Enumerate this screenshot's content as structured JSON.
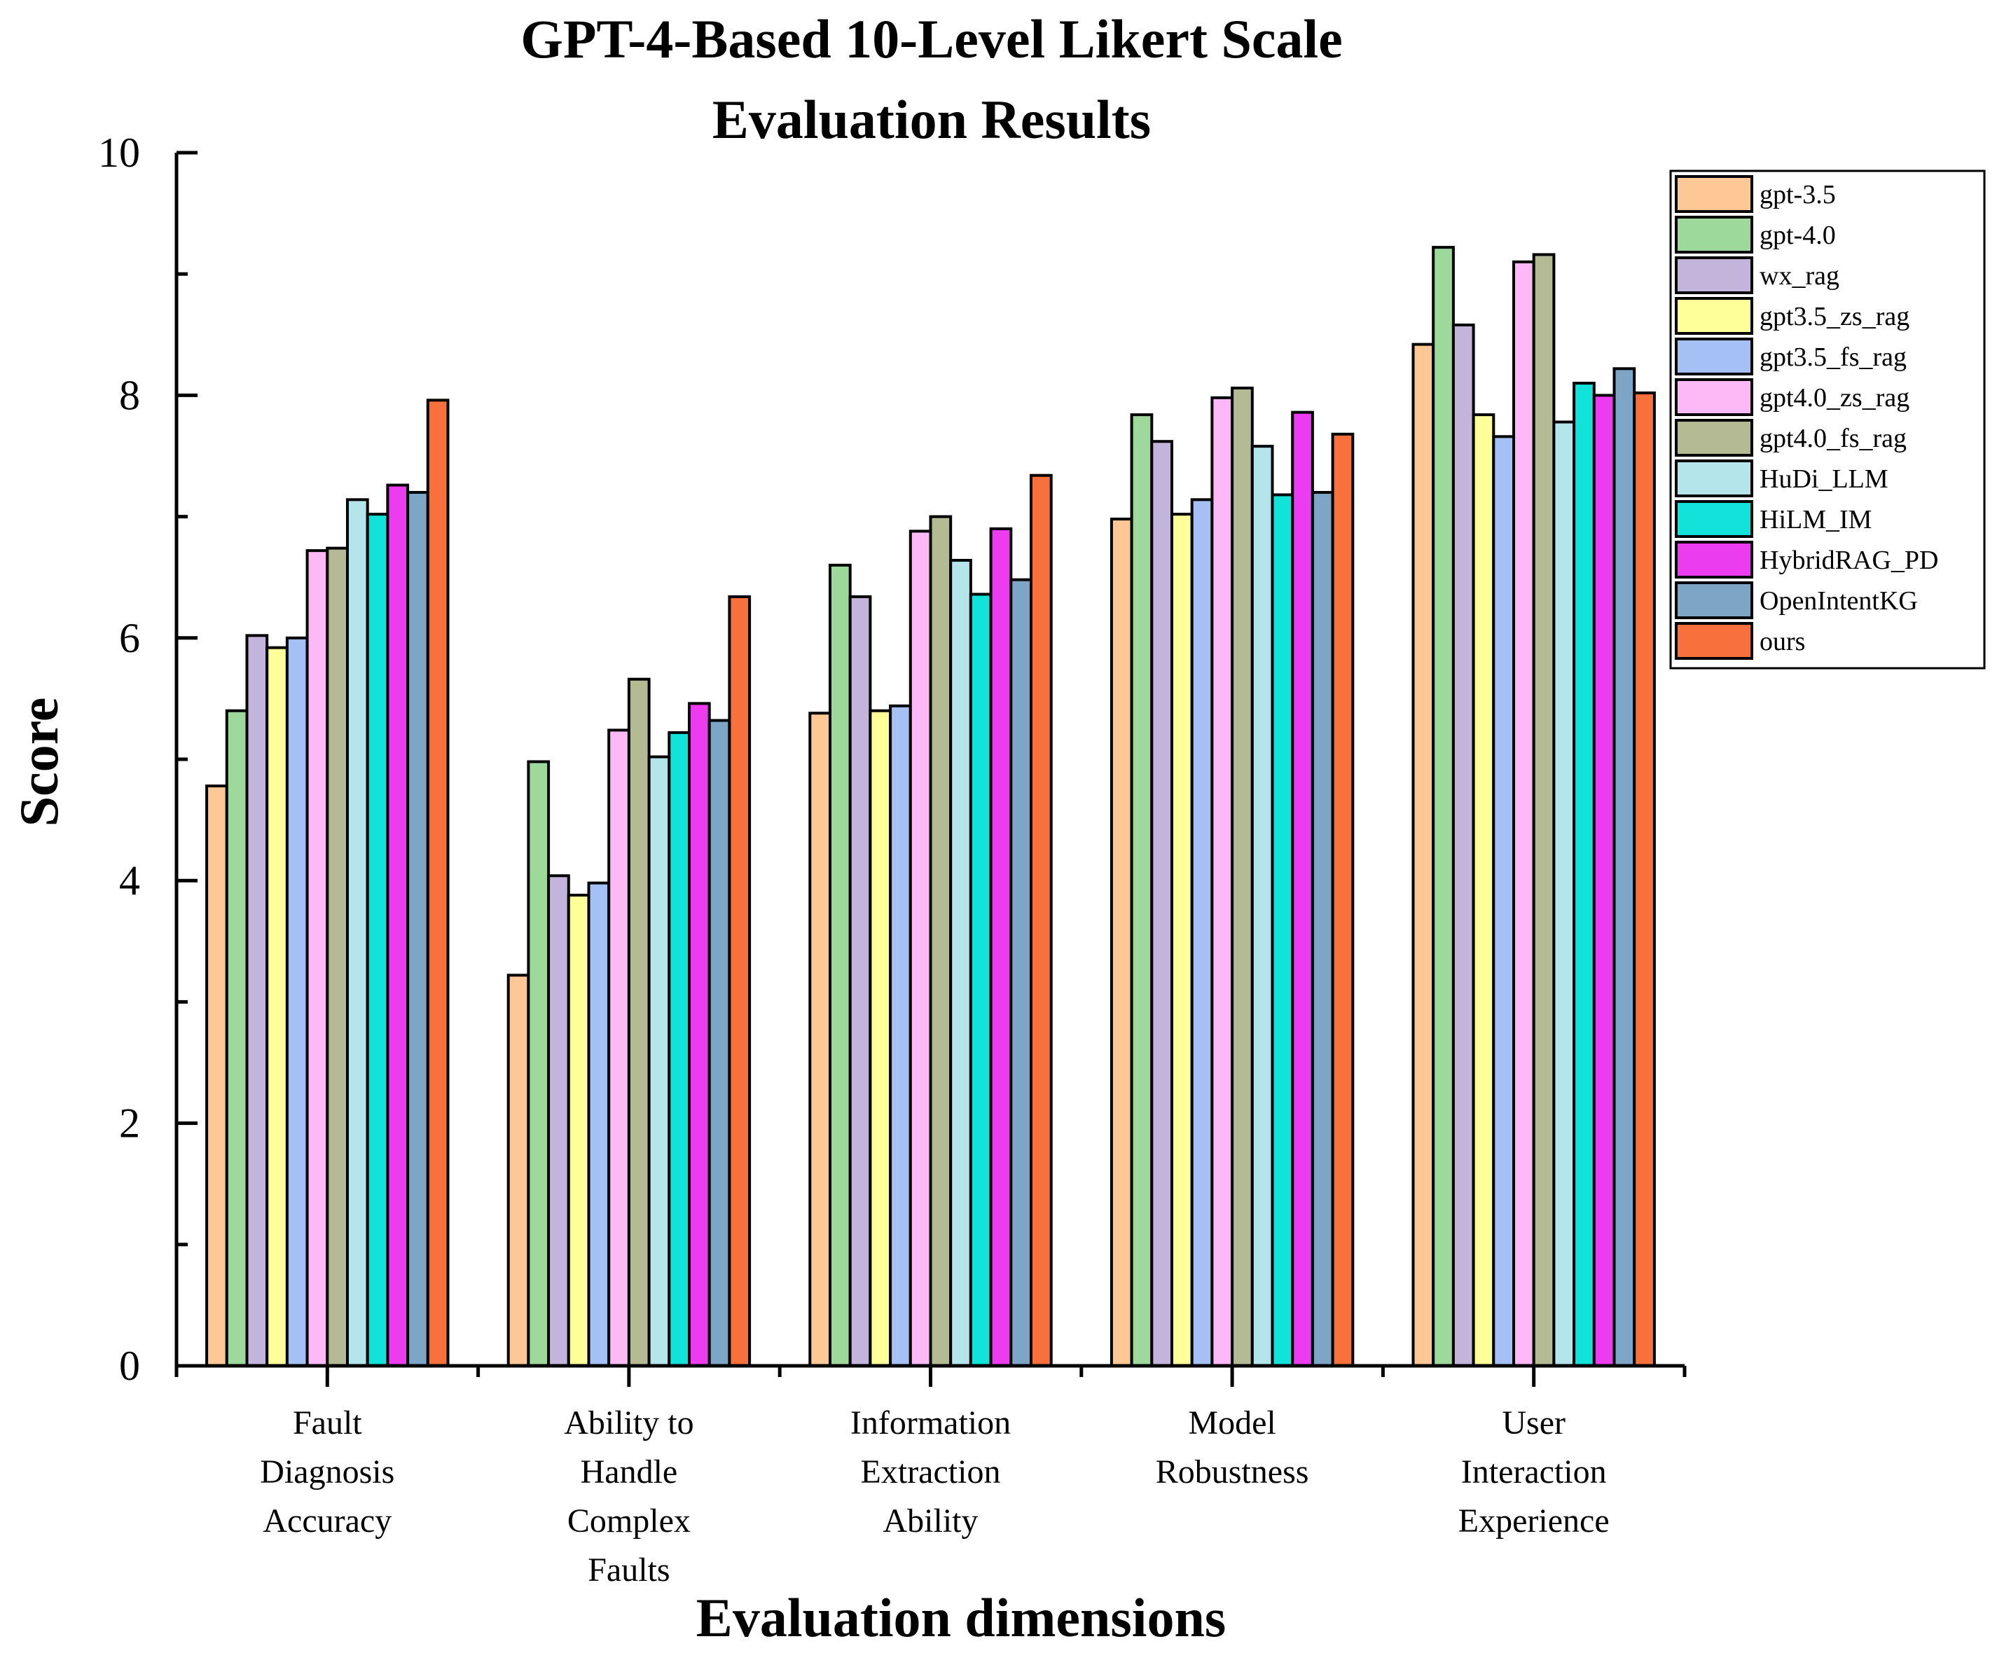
{
  "chart_data": {
    "type": "bar",
    "title": [
      "GPT-4-Based 10-Level Likert Scale",
      "Evaluation Results"
    ],
    "xlabel": "Evaluation dimensions",
    "ylabel": "Score",
    "ylim": [
      0,
      10
    ],
    "yticks": [
      0,
      2,
      4,
      6,
      8,
      10
    ],
    "ytick_labels": [
      "0",
      "2",
      "4",
      "6",
      "8",
      "10"
    ],
    "minor_yticks": [
      1,
      3,
      5,
      7,
      9
    ],
    "grid": false,
    "legend_position": "top-right",
    "categories": [
      [
        "Fault",
        "Diagnosis",
        "Accuracy"
      ],
      [
        "Ability to",
        "Handle",
        "Complex",
        "Faults"
      ],
      [
        "Information",
        "Extraction",
        "Ability"
      ],
      [
        "Model",
        "Robustness"
      ],
      [
        "User",
        "Interaction",
        "Experience"
      ]
    ],
    "series": [
      {
        "name": "gpt-3.5",
        "color": "#FDC896",
        "values": [
          4.78,
          3.22,
          5.38,
          6.98,
          8.42
        ]
      },
      {
        "name": "gpt-4.0",
        "color": "#9ED99C",
        "values": [
          5.4,
          4.98,
          6.6,
          7.84,
          9.22
        ]
      },
      {
        "name": "wx_rag",
        "color": "#C3B4DC",
        "values": [
          6.02,
          4.04,
          6.34,
          7.62,
          8.58
        ]
      },
      {
        "name": "gpt3.5_zs_rag",
        "color": "#FFFF99",
        "values": [
          5.92,
          3.88,
          5.4,
          7.02,
          7.84
        ]
      },
      {
        "name": "gpt3.5_fs_rag",
        "color": "#A5C0F5",
        "values": [
          6.0,
          3.98,
          5.44,
          7.14,
          7.66
        ]
      },
      {
        "name": "gpt4.0_zs_rag",
        "color": "#FCB9F6",
        "values": [
          6.72,
          5.24,
          6.88,
          7.98,
          9.1
        ]
      },
      {
        "name": "gpt4.0_fs_rag",
        "color": "#B4BB94",
        "values": [
          6.74,
          5.66,
          7.0,
          8.06,
          9.16
        ]
      },
      {
        "name": "HuDi_LLM",
        "color": "#B3E5EB",
        "values": [
          7.14,
          5.02,
          6.64,
          7.58,
          7.78
        ]
      },
      {
        "name": "HiLM_IM",
        "color": "#12E3DA",
        "values": [
          7.02,
          5.22,
          6.36,
          7.18,
          8.1
        ]
      },
      {
        "name": "HybridRAG_PD",
        "color": "#EC3CF0",
        "values": [
          7.26,
          5.46,
          6.9,
          7.86,
          8.0
        ]
      },
      {
        "name": "OpenIntentKG",
        "color": "#7DA6C6",
        "values": [
          7.2,
          5.32,
          6.48,
          7.2,
          8.22
        ]
      },
      {
        "name": "ours",
        "color": "#F8703B",
        "values": [
          7.96,
          6.34,
          7.34,
          7.68,
          8.02
        ]
      }
    ]
  }
}
